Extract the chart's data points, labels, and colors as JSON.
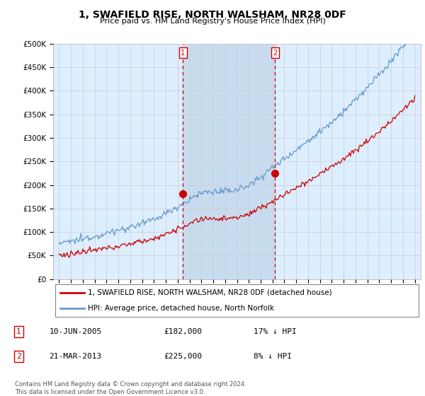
{
  "title": "1, SWAFIELD RISE, NORTH WALSHAM, NR28 0DF",
  "subtitle": "Price paid vs. HM Land Registry's House Price Index (HPI)",
  "ylim": [
    0,
    500000
  ],
  "yticks": [
    0,
    50000,
    100000,
    150000,
    200000,
    250000,
    300000,
    350000,
    400000,
    450000,
    500000
  ],
  "ytick_labels": [
    "£0",
    "£50K",
    "£100K",
    "£150K",
    "£200K",
    "£250K",
    "£300K",
    "£350K",
    "£400K",
    "£450K",
    "£500K"
  ],
  "x_start_year": 1995,
  "x_end_year": 2025,
  "chart_bg_color": "#ddeeff",
  "shade_color": "#c8dcf0",
  "fig_bg_color": "#ffffff",
  "red_line_color": "#cc0000",
  "blue_line_color": "#6699cc",
  "grid_color": "#cccccc",
  "vline_color": "#cc0000",
  "legend_line1": "1, SWAFIELD RISE, NORTH WALSHAM, NR28 0DF (detached house)",
  "legend_line2": "HPI: Average price, detached house, North Norfolk",
  "transaction1_label": "1",
  "transaction1_date": "10-JUN-2005",
  "transaction1_price": "£182,000",
  "transaction1_hpi": "17% ↓ HPI",
  "transaction1_year": 2005.44,
  "transaction1_value": 182000,
  "transaction2_label": "2",
  "transaction2_date": "21-MAR-2013",
  "transaction2_price": "£225,000",
  "transaction2_hpi": "8% ↓ HPI",
  "transaction2_year": 2013.21,
  "transaction2_value": 225000,
  "footer": "Contains HM Land Registry data © Crown copyright and database right 2024.\nThis data is licensed under the Open Government Licence v3.0."
}
